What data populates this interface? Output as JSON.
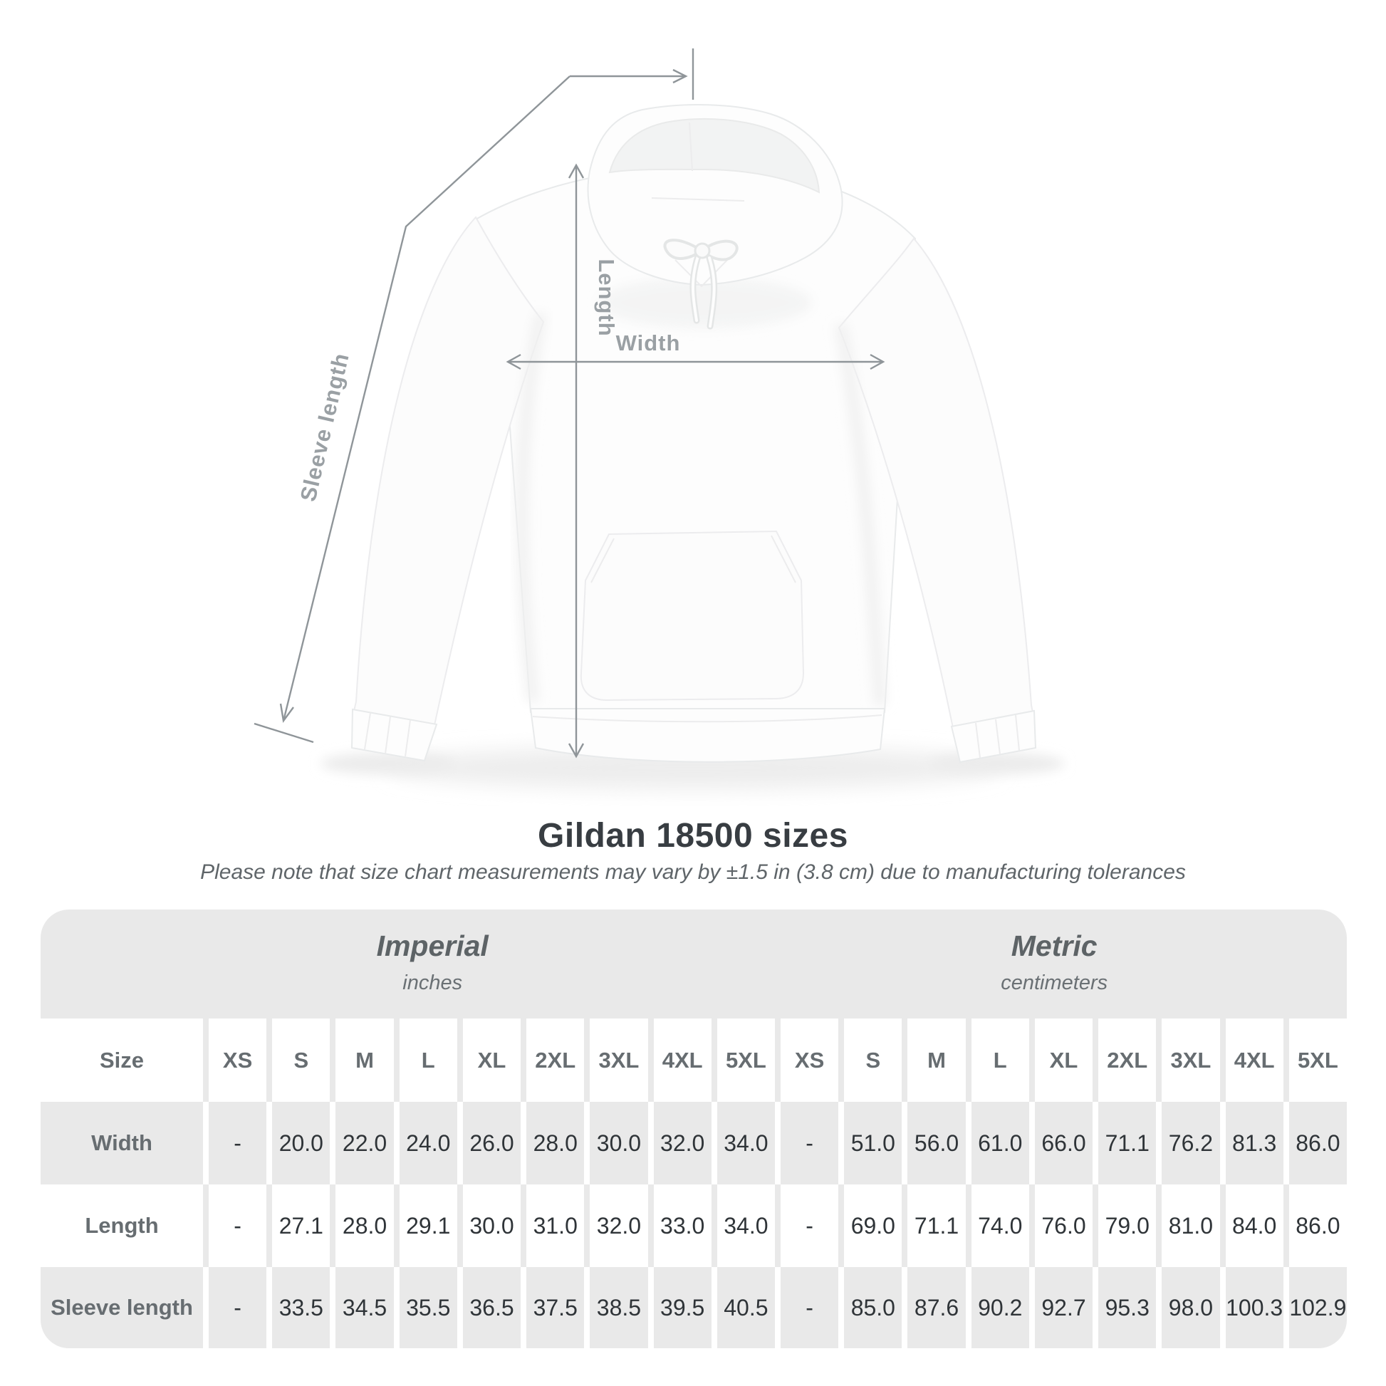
{
  "title": "Gildan 18500 sizes",
  "subtitle": "Please note that size chart measurements may vary by ±1.5 in (3.8 cm) due to manufacturing tolerances",
  "diagram": {
    "labels": {
      "sleeve_length": "Sleeve length",
      "length": "Length",
      "width": "Width"
    },
    "line_color": "#8f9599",
    "label_color": "#9aa0a4"
  },
  "table": {
    "background_gray": "#e9e9e9",
    "size_col_header": "Size",
    "sizes": [
      "XS",
      "S",
      "M",
      "L",
      "XL",
      "2XL",
      "3XL",
      "4XL",
      "5XL"
    ],
    "unit_groups": [
      {
        "name": "Imperial",
        "unit": "inches"
      },
      {
        "name": "Metric",
        "unit": "centimeters"
      }
    ],
    "rows": [
      {
        "label": "Width",
        "imperial": [
          "-",
          "20.0",
          "22.0",
          "24.0",
          "26.0",
          "28.0",
          "30.0",
          "32.0",
          "34.0"
        ],
        "metric": [
          "-",
          "51.0",
          "56.0",
          "61.0",
          "66.0",
          "71.1",
          "76.2",
          "81.3",
          "86.0"
        ]
      },
      {
        "label": "Length",
        "imperial": [
          "-",
          "27.1",
          "28.0",
          "29.1",
          "30.0",
          "31.0",
          "32.0",
          "33.0",
          "34.0"
        ],
        "metric": [
          "-",
          "69.0",
          "71.1",
          "74.0",
          "76.0",
          "79.0",
          "81.0",
          "84.0",
          "86.0"
        ]
      },
      {
        "label": "Sleeve length",
        "imperial": [
          "-",
          "33.5",
          "34.5",
          "35.5",
          "36.5",
          "37.5",
          "38.5",
          "39.5",
          "40.5"
        ],
        "metric": [
          "-",
          "85.0",
          "87.6",
          "90.2",
          "92.7",
          "95.3",
          "98.0",
          "100.3",
          "102.9"
        ]
      }
    ]
  },
  "chart_data": {
    "type": "table",
    "title": "Gildan 18500 sizes",
    "subtitle": "Please note that size chart measurements may vary by ±1.5 in (3.8 cm) due to manufacturing tolerances",
    "column_groups": [
      "Imperial (inches)",
      "Metric (centimeters)"
    ],
    "sizes": [
      "XS",
      "S",
      "M",
      "L",
      "XL",
      "2XL",
      "3XL",
      "4XL",
      "5XL"
    ],
    "rows": [
      {
        "label": "Width",
        "imperial_inches": [
          null,
          20.0,
          22.0,
          24.0,
          26.0,
          28.0,
          30.0,
          32.0,
          34.0
        ],
        "metric_cm": [
          null,
          51.0,
          56.0,
          61.0,
          66.0,
          71.1,
          76.2,
          81.3,
          86.0
        ]
      },
      {
        "label": "Length",
        "imperial_inches": [
          null,
          27.1,
          28.0,
          29.1,
          30.0,
          31.0,
          32.0,
          33.0,
          34.0
        ],
        "metric_cm": [
          null,
          69.0,
          71.1,
          74.0,
          76.0,
          79.0,
          81.0,
          84.0,
          86.0
        ]
      },
      {
        "label": "Sleeve length",
        "imperial_inches": [
          null,
          33.5,
          34.5,
          35.5,
          36.5,
          37.5,
          38.5,
          39.5,
          40.5
        ],
        "metric_cm": [
          null,
          85.0,
          87.6,
          90.2,
          92.7,
          95.3,
          98.0,
          100.3,
          102.9
        ]
      }
    ]
  }
}
